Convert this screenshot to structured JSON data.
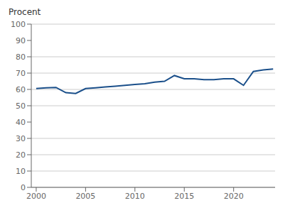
{
  "chart_data": {
    "type": "line",
    "ylabel": "Procent",
    "x": [
      2000,
      2001,
      2002,
      2003,
      2004,
      2005,
      2006,
      2007,
      2008,
      2009,
      2010,
      2011,
      2012,
      2013,
      2014,
      2015,
      2016,
      2017,
      2018,
      2019,
      2020,
      2021,
      2022,
      2023,
      2024
    ],
    "values": [
      60.5,
      61.0,
      61.2,
      58.0,
      57.5,
      60.5,
      61.0,
      61.5,
      62.0,
      62.5,
      63.0,
      63.5,
      64.5,
      65.0,
      68.5,
      66.5,
      66.5,
      66.0,
      66.0,
      66.5,
      66.5,
      62.5,
      71.0,
      72.0,
      72.5
    ],
    "color": "#1a4f8a",
    "xlim": [
      1999.5,
      2024.2
    ],
    "xticks": [
      2000,
      2005,
      2010,
      2015,
      2020
    ],
    "ylim": [
      0,
      100
    ],
    "yticks": [
      0,
      10,
      20,
      30,
      40,
      50,
      60,
      70,
      80,
      90,
      100
    ],
    "grid": true
  }
}
